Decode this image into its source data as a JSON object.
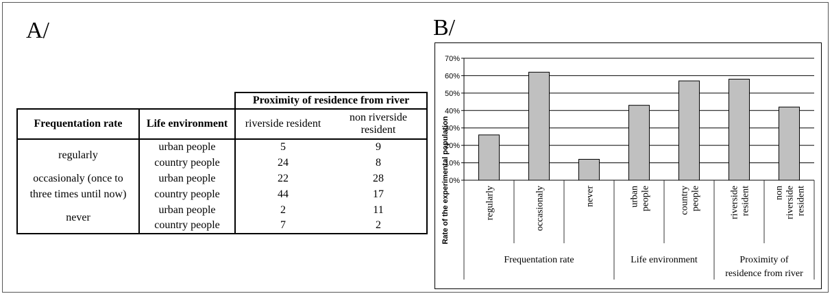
{
  "panel_a_label": "A/",
  "panel_b_label": "B/",
  "table": {
    "group_header": "Proximity of residence from river",
    "col_frequentation": "Frequentation rate",
    "col_life": "Life environment",
    "col_riverside": "riverside resident",
    "col_nonriverside_line1": "non riverside",
    "col_nonriverside_line2": "resident",
    "rows": [
      {
        "freq": "regularly",
        "life": "urban people",
        "riverside": "5",
        "non": "9"
      },
      {
        "freq": "",
        "life": "country people",
        "riverside": "24",
        "non": "8"
      },
      {
        "freq": "occasionaly (once to",
        "life": "urban people",
        "riverside": "22",
        "non": "28"
      },
      {
        "freq": "three times until now)",
        "life": "country people",
        "riverside": "44",
        "non": "17"
      },
      {
        "freq": "never",
        "life": "urban people",
        "riverside": "2",
        "non": "11"
      },
      {
        "freq": "",
        "life": "country people",
        "riverside": "7",
        "non": "2"
      }
    ]
  },
  "chart_data": {
    "type": "bar",
    "ylabel": "Rate of the experimental population",
    "ylim": [
      0,
      70
    ],
    "yticks": [
      "0%",
      "10%",
      "20%",
      "30%",
      "40%",
      "50%",
      "60%",
      "70%"
    ],
    "grid": true,
    "categories": [
      {
        "line1": "regularly",
        "line2": ""
      },
      {
        "line1": "occasionaly",
        "line2": ""
      },
      {
        "line1": "never",
        "line2": ""
      },
      {
        "line1": "urban",
        "line2": "people"
      },
      {
        "line1": "country",
        "line2": "people"
      },
      {
        "line1": "riverside",
        "line2": "resident"
      },
      {
        "line1": "non",
        "line2": "riverside",
        "line3": "resident"
      }
    ],
    "values": [
      26,
      62,
      12,
      43,
      57,
      58,
      42
    ],
    "groups": [
      {
        "line1": "Frequentation rate",
        "line2": ""
      },
      {
        "line1": "Life environment",
        "line2": ""
      },
      {
        "line1": "Proximity of",
        "line2": "residence from river"
      }
    ],
    "bar_color": "#c0c0c0"
  }
}
